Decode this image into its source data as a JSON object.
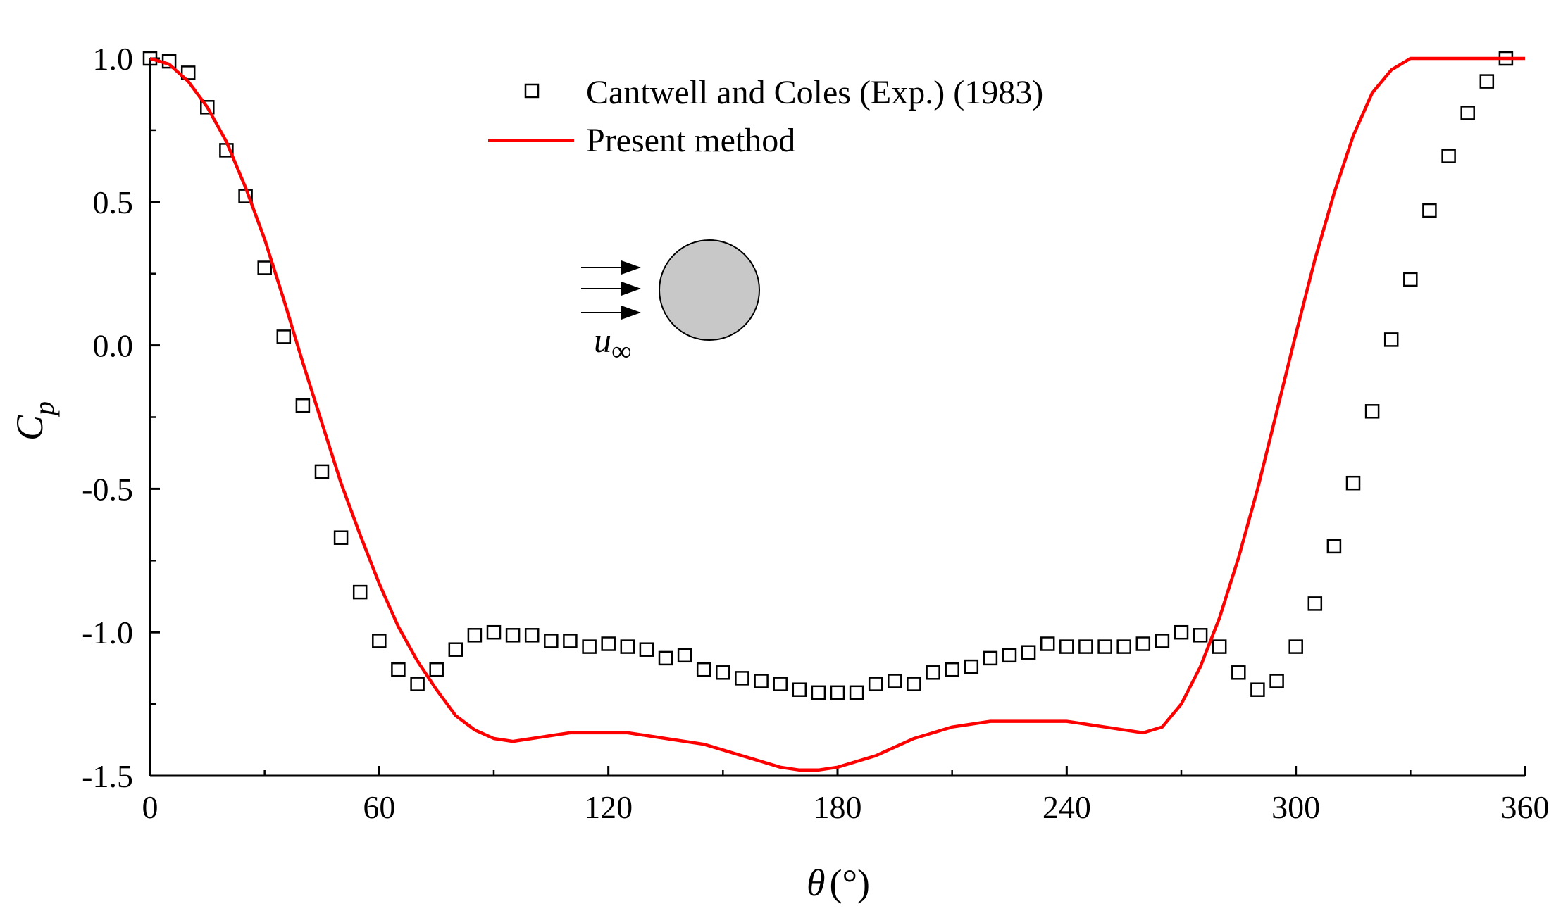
{
  "chart_data": {
    "type": "scatter",
    "title": "",
    "xlabel_symbol": "θ",
    "xlabel_unit": "(°)",
    "ylabel_main": "C",
    "ylabel_sub": "p",
    "xlim": [
      0,
      360
    ],
    "ylim": [
      -1.5,
      1.0
    ],
    "xticks": [
      0,
      60,
      120,
      180,
      240,
      300,
      360
    ],
    "xtick_labels": [
      "0",
      "60",
      "120",
      "180",
      "240",
      "300",
      "360"
    ],
    "yticks": [
      1.0,
      0.5,
      0.0,
      -0.5,
      -1.0,
      -1.5
    ],
    "ytick_labels": [
      "1.0",
      "0.5",
      "0.0",
      "-0.5",
      "-1.0",
      "-1.5"
    ],
    "grid": false,
    "legend_position": "top-center",
    "series": [
      {
        "name": "Cantwell and Coles (Exp.) (1983)",
        "marker": "open-square",
        "color": "#000000",
        "x": [
          0,
          5,
          10,
          15,
          20,
          25,
          30,
          35,
          40,
          45,
          50,
          55,
          60,
          65,
          70,
          75,
          80,
          85,
          90,
          95,
          100,
          105,
          110,
          115,
          120,
          125,
          130,
          135,
          140,
          145,
          150,
          155,
          160,
          165,
          170,
          175,
          180,
          185,
          190,
          195,
          200,
          205,
          210,
          215,
          220,
          225,
          230,
          235,
          240,
          245,
          250,
          255,
          260,
          265,
          270,
          275,
          280,
          285,
          290,
          295,
          300,
          305,
          310,
          315,
          320,
          325,
          330,
          335,
          340,
          345,
          350,
          355
        ],
        "y": [
          1.0,
          0.99,
          0.95,
          0.83,
          0.68,
          0.52,
          0.27,
          0.03,
          -0.21,
          -0.44,
          -0.67,
          -0.86,
          -1.03,
          -1.13,
          -1.18,
          -1.13,
          -1.06,
          -1.01,
          -1.0,
          -1.01,
          -1.01,
          -1.03,
          -1.03,
          -1.05,
          -1.04,
          -1.05,
          -1.06,
          -1.09,
          -1.08,
          -1.13,
          -1.14,
          -1.16,
          -1.17,
          -1.18,
          -1.2,
          -1.21,
          -1.21,
          -1.21,
          -1.18,
          -1.17,
          -1.18,
          -1.14,
          -1.13,
          -1.12,
          -1.09,
          -1.08,
          -1.07,
          -1.04,
          -1.05,
          -1.05,
          -1.05,
          -1.05,
          -1.04,
          -1.03,
          -1.0,
          -1.01,
          -1.05,
          -1.14,
          -1.2,
          -1.17,
          -1.05,
          -0.9,
          -0.7,
          -0.48,
          -0.23,
          0.02,
          0.23,
          0.47,
          0.66,
          0.81,
          0.92,
          1.0
        ]
      },
      {
        "name": "Present method",
        "line": "solid",
        "color": "#ff0000",
        "x": [
          0,
          5,
          10,
          15,
          20,
          25,
          30,
          35,
          40,
          45,
          50,
          55,
          60,
          65,
          70,
          75,
          80,
          85,
          90,
          95,
          100,
          105,
          110,
          115,
          120,
          125,
          130,
          135,
          140,
          145,
          150,
          155,
          160,
          165,
          170,
          175,
          180,
          185,
          190,
          195,
          200,
          205,
          210,
          215,
          220,
          225,
          230,
          235,
          240,
          245,
          250,
          255,
          260,
          265,
          270,
          275,
          280,
          285,
          290,
          295,
          300,
          305,
          310,
          315,
          320,
          325,
          330,
          335,
          340,
          345,
          350,
          355,
          360
        ],
        "y": [
          1.0,
          0.98,
          0.92,
          0.83,
          0.71,
          0.55,
          0.37,
          0.16,
          -0.06,
          -0.27,
          -0.48,
          -0.66,
          -0.83,
          -0.98,
          -1.1,
          -1.2,
          -1.29,
          -1.34,
          -1.37,
          -1.38,
          -1.37,
          -1.36,
          -1.35,
          -1.35,
          -1.35,
          -1.35,
          -1.36,
          -1.37,
          -1.38,
          -1.39,
          -1.41,
          -1.43,
          -1.45,
          -1.47,
          -1.48,
          -1.48,
          -1.47,
          -1.45,
          -1.43,
          -1.4,
          -1.37,
          -1.35,
          -1.33,
          -1.32,
          -1.31,
          -1.31,
          -1.31,
          -1.31,
          -1.31,
          -1.32,
          -1.33,
          -1.34,
          -1.35,
          -1.33,
          -1.25,
          -1.12,
          -0.95,
          -0.74,
          -0.5,
          -0.23,
          0.04,
          0.3,
          0.53,
          0.73,
          0.88,
          0.96,
          1.0,
          1.0,
          1.0,
          1.0,
          1.0,
          1.0,
          1.0
        ]
      }
    ],
    "inset": {
      "label_main": "u",
      "label_sub": "∞"
    }
  }
}
